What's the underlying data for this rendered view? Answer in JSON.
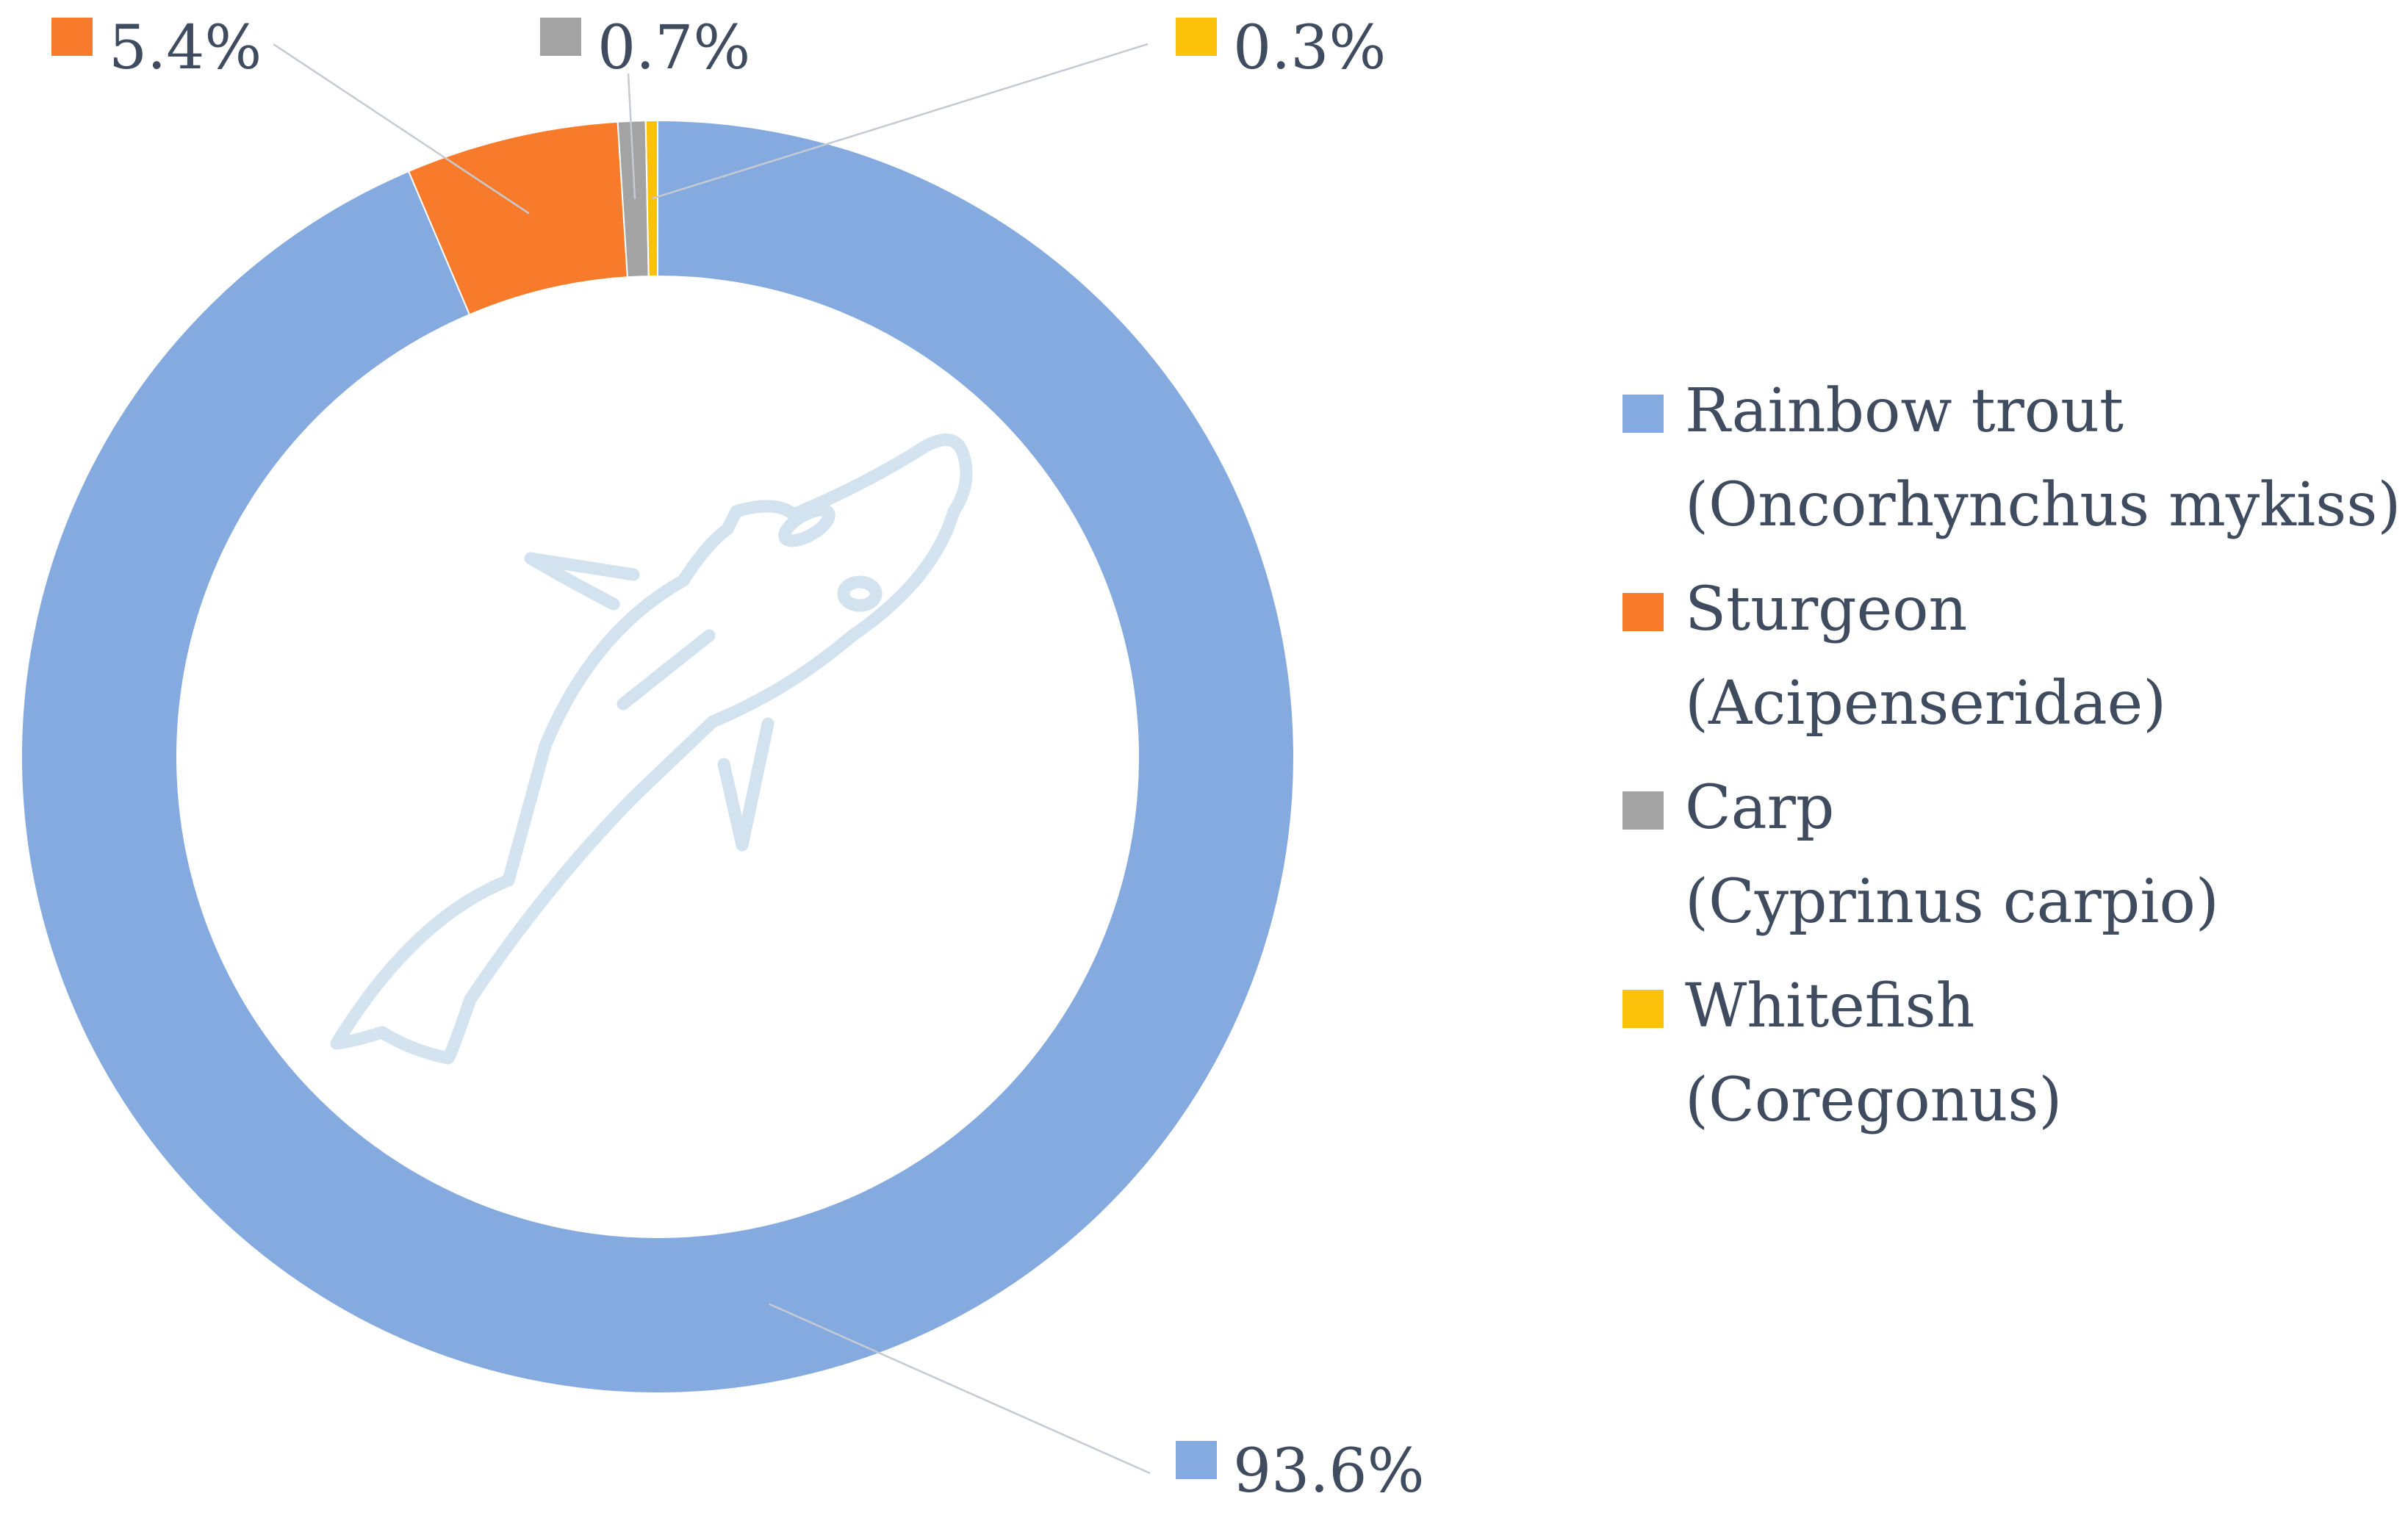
{
  "chart_data": {
    "type": "pie",
    "variant": "donut",
    "unit": "%",
    "legend_position": "right",
    "slices": [
      {
        "name": "Rainbow trout",
        "latin": "(Oncorhynchus mykiss)",
        "value": 93.6,
        "label": "93.6%",
        "color": "#84aadf"
      },
      {
        "name": "Sturgeon",
        "latin": "(Acipenseridae)",
        "value": 5.4,
        "label": "5.4%",
        "color": "#f77b2a"
      },
      {
        "name": "Carp",
        "latin": "(Cyprinus carpio)",
        "value": 0.7,
        "label": "0.7%",
        "color": "#a3a3a3"
      },
      {
        "name": "Whitefish",
        "latin": "(Coregonus)",
        "value": 0.3,
        "label": "0.3%",
        "color": "#fcc10a"
      }
    ],
    "center_icon": "fish-icon"
  }
}
